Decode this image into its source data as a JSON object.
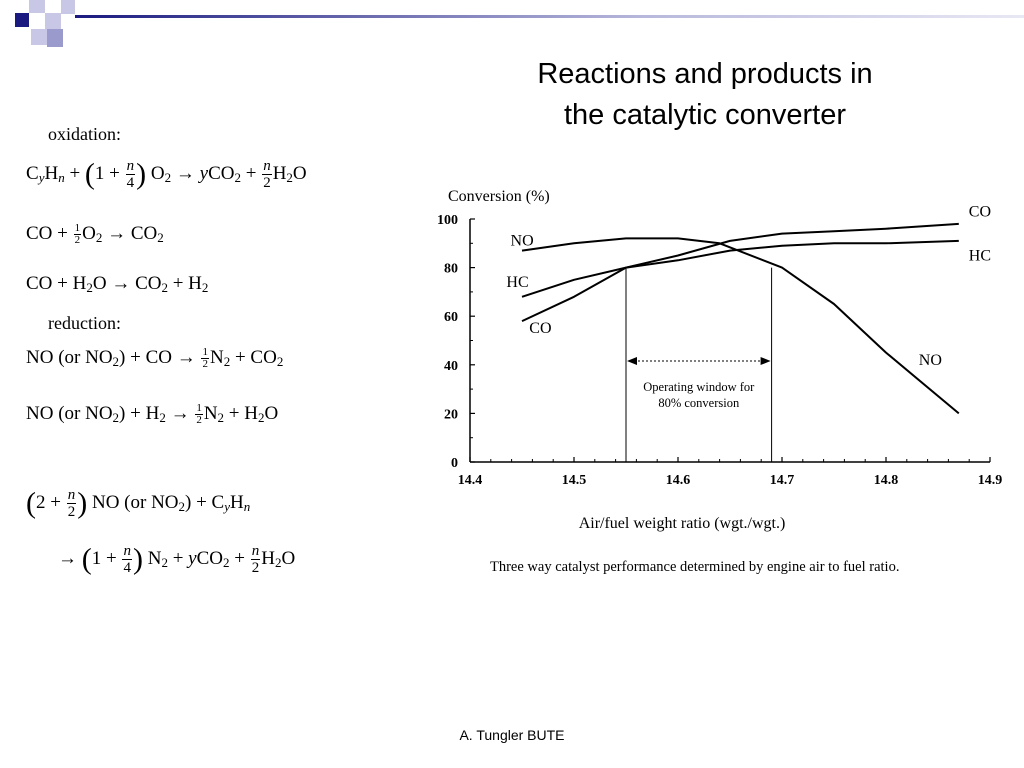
{
  "slide": {
    "title_line1": "Reactions and products in",
    "title_line2": "the catalytic converter",
    "footer": "A. Tungler BUTE",
    "accent_dark": "#1a1a80",
    "accent_light": "#9999cc"
  },
  "reactions": {
    "oxidation_heading": "oxidation:",
    "reduction_heading": "reduction:"
  },
  "chart_data": {
    "type": "line",
    "ylabel": "Conversion (%)",
    "xlabel": "Air/fuel weight ratio (wgt./wgt.)",
    "caption": "Three way catalyst performance determined by engine air to fuel ratio.",
    "xlim": [
      14.4,
      14.9
    ],
    "ylim": [
      0,
      100
    ],
    "x_ticks": [
      "14.4",
      "14.5",
      "14.6",
      "14.7",
      "14.8",
      "14.9"
    ],
    "y_ticks": [
      "0",
      "20",
      "40",
      "60",
      "80",
      "100"
    ],
    "series": [
      {
        "name": "CO",
        "x": [
          14.45,
          14.5,
          14.55,
          14.6,
          14.65,
          14.7,
          14.75,
          14.8,
          14.87
        ],
        "y": [
          58,
          68,
          80,
          85,
          91,
          94,
          95,
          96,
          98
        ]
      },
      {
        "name": "HC",
        "x": [
          14.45,
          14.5,
          14.55,
          14.6,
          14.65,
          14.7,
          14.75,
          14.8,
          14.87
        ],
        "y": [
          68,
          75,
          80,
          83,
          87,
          89,
          90,
          90,
          91
        ]
      },
      {
        "name": "NO",
        "x": [
          14.45,
          14.5,
          14.55,
          14.6,
          14.64,
          14.7,
          14.75,
          14.8,
          14.87
        ],
        "y": [
          87,
          90,
          92,
          92,
          90,
          80,
          65,
          45,
          20
        ]
      }
    ],
    "operating_window": {
      "x_start": 14.55,
      "x_end": 14.69,
      "label_line1": "Operating window for",
      "label_line2": "80% conversion"
    }
  }
}
